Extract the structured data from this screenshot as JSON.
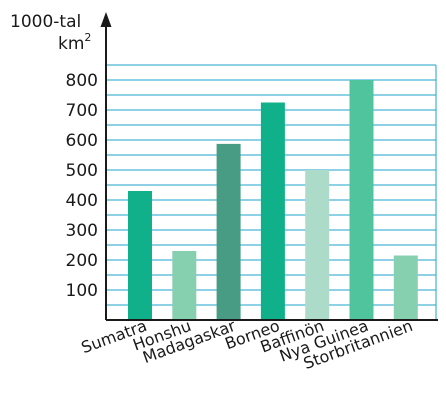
{
  "chart_data": {
    "type": "bar",
    "ylabel_line1": "1000-tal",
    "ylabel_line2_base": "km",
    "ylabel_line2_sup": "2",
    "categories": [
      "Sumatra",
      "Honshu",
      "Madagaskar",
      "Borneo",
      "Baffinön",
      "Nya Guinea",
      "Storbritannien"
    ],
    "values": [
      430,
      230,
      587,
      725,
      500,
      800,
      215
    ],
    "bar_colors": [
      "#10b08a",
      "#86d0b0",
      "#489c84",
      "#10b08a",
      "#acdcc9",
      "#50c49c",
      "#86d0b0"
    ],
    "yticks": [
      100,
      200,
      300,
      400,
      500,
      600,
      700,
      800
    ],
    "ylim": [
      0,
      850
    ],
    "grid": true,
    "grid_color": "#1ea3cf"
  }
}
